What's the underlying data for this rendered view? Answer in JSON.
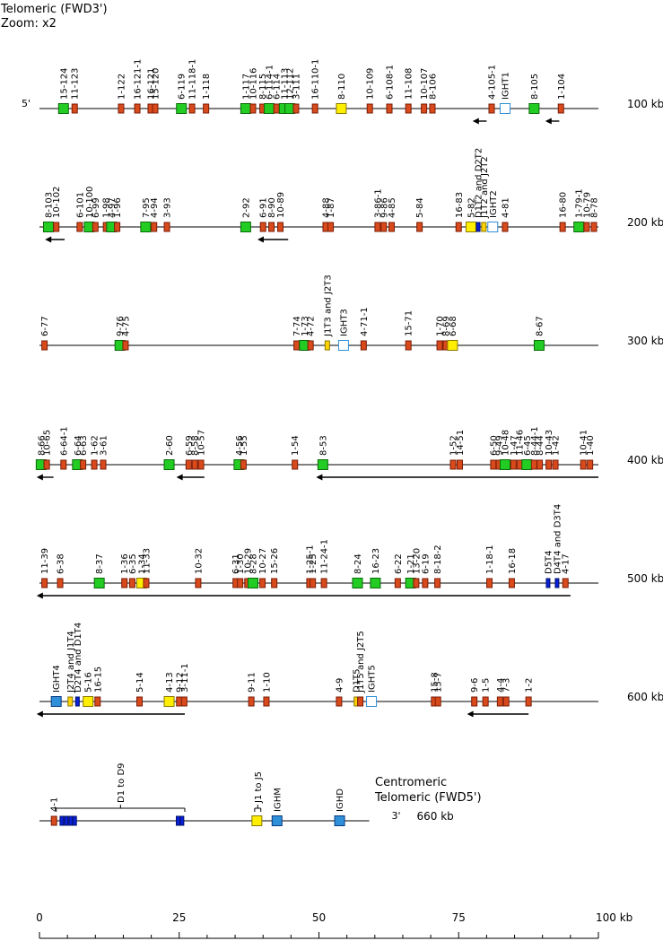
{
  "header": {
    "title": "Telomeric (FWD3')",
    "zoom": "Zoom: x2"
  },
  "legend": {
    "red": "#d84a1b",
    "green": "#22cc22",
    "yellow": "#ffee00",
    "blue": "#0a1fd8",
    "light_blue": "#2f8fd8",
    "hollow_blue": "#2f8fd8",
    "line": "#000000"
  },
  "axis": {
    "ticks": [
      "0",
      "25",
      "50",
      "75",
      "100 kb"
    ],
    "values": [
      0,
      25,
      50,
      75,
      100
    ]
  },
  "rows": [
    {
      "kb": "100 kb",
      "end5": "5'",
      "arrows": [
        {
          "from": 80,
          "to": 77.5
        },
        {
          "from": 93,
          "to": 90.5
        }
      ],
      "genes": [
        {
          "pos": 4.3,
          "t": "g",
          "l": "15-124"
        },
        {
          "pos": 6.3,
          "t": "r",
          "l": "11-123"
        },
        {
          "pos": 14.6,
          "t": "r",
          "l": "1-122"
        },
        {
          "pos": 17.5,
          "t": "r",
          "l": "16-121-1"
        },
        {
          "pos": 19.9,
          "t": "r",
          "l": "16-121"
        },
        {
          "pos": 20.7,
          "t": "r",
          "l": "15-120"
        },
        {
          "pos": 25.4,
          "t": "g",
          "l": "6-119"
        },
        {
          "pos": 27.3,
          "t": "r",
          "l": "11-118-1"
        },
        {
          "pos": 29.8,
          "t": "r",
          "l": "1-118"
        },
        {
          "pos": 36.9,
          "t": "g",
          "l": "1-117"
        },
        {
          "pos": 38.2,
          "t": "r",
          "l": "10-116"
        },
        {
          "pos": 39.9,
          "t": "r",
          "l": "8-115"
        },
        {
          "pos": 41.1,
          "t": "g",
          "l": "6-114-1"
        },
        {
          "pos": 42.4,
          "t": "r",
          "l": "6-114"
        },
        {
          "pos": 43.8,
          "t": "g",
          "l": "11-113"
        },
        {
          "pos": 44.8,
          "t": "g",
          "l": "12-112"
        },
        {
          "pos": 45.9,
          "t": "r",
          "l": "3-111"
        },
        {
          "pos": 49.3,
          "t": "r",
          "l": "16-110-1"
        },
        {
          "pos": 54.0,
          "t": "y",
          "l": "8-110"
        },
        {
          "pos": 59.1,
          "t": "r",
          "l": "10-109"
        },
        {
          "pos": 62.6,
          "t": "r",
          "l": "6-108-1"
        },
        {
          "pos": 66.0,
          "t": "r",
          "l": "11-108"
        },
        {
          "pos": 68.8,
          "t": "r",
          "l": "10-107"
        },
        {
          "pos": 70.3,
          "t": "r",
          "l": "8-106"
        },
        {
          "pos": 80.9,
          "t": "r",
          "l": "4-105-1"
        },
        {
          "pos": 83.3,
          "t": "h",
          "l": "IGHT1"
        },
        {
          "pos": 88.5,
          "t": "g",
          "l": "8-105"
        },
        {
          "pos": 93.3,
          "t": "r",
          "l": "1-104"
        }
      ]
    },
    {
      "kb": "200 kb",
      "end5": "",
      "arrows": [
        {
          "from": 4.5,
          "to": 1.0
        },
        {
          "from": 44.5,
          "to": 39.0
        }
      ],
      "genes": [
        {
          "pos": 1.6,
          "t": "g",
          "l": "8-103"
        },
        {
          "pos": 3.0,
          "t": "r",
          "l": "10-102"
        },
        {
          "pos": 7.2,
          "t": "r",
          "l": "6-101"
        },
        {
          "pos": 8.9,
          "t": "g",
          "l": "10-100"
        },
        {
          "pos": 10.0,
          "t": "r",
          "l": "6-99"
        },
        {
          "pos": 11.9,
          "t": "r",
          "l": "1-98"
        },
        {
          "pos": 12.9,
          "t": "g",
          "l": "4-97"
        },
        {
          "pos": 13.9,
          "t": "r",
          "l": "1-96"
        },
        {
          "pos": 19.0,
          "t": "g",
          "l": "7-95"
        },
        {
          "pos": 20.5,
          "t": "r",
          "l": "4-94"
        },
        {
          "pos": 22.8,
          "t": "r",
          "l": "3-93"
        },
        {
          "pos": 36.9,
          "t": "g",
          "l": "2-92"
        },
        {
          "pos": 40.0,
          "t": "r",
          "l": "6-91"
        },
        {
          "pos": 41.5,
          "t": "r",
          "l": "8-90"
        },
        {
          "pos": 43.1,
          "t": "r",
          "l": "10-89"
        },
        {
          "pos": 51.2,
          "t": "r",
          "l": "4-88"
        },
        {
          "pos": 52.1,
          "t": "r",
          "l": "1-87"
        },
        {
          "pos": 60.5,
          "t": "r",
          "l": "3-86-1"
        },
        {
          "pos": 61.6,
          "t": "r",
          "l": "9-86"
        },
        {
          "pos": 63.0,
          "t": "r",
          "l": "4-85"
        },
        {
          "pos": 68.0,
          "t": "r",
          "l": "5-84"
        },
        {
          "pos": 75.0,
          "t": "r",
          "l": "16-83"
        },
        {
          "pos": 77.2,
          "t": "y",
          "l": "5-82"
        },
        {
          "pos": 78.5,
          "t": "bb",
          "l": "D1T2 and D2T2"
        },
        {
          "pos": 79.5,
          "t": "ys",
          "l": "J1T2 and J2T2"
        },
        {
          "pos": 81.1,
          "t": "h",
          "l": "IGHT2"
        },
        {
          "pos": 83.3,
          "t": "r",
          "l": "4-81"
        },
        {
          "pos": 93.6,
          "t": "r",
          "l": "16-80"
        },
        {
          "pos": 96.5,
          "t": "g",
          "l": "1-79-1"
        },
        {
          "pos": 97.9,
          "t": "r",
          "l": "10-79"
        },
        {
          "pos": 99.2,
          "t": "r",
          "l": "8-78"
        }
      ]
    },
    {
      "kb": "300 kb",
      "end5": "",
      "arrows": [],
      "genes": [
        {
          "pos": 0.9,
          "t": "r",
          "l": "6-77"
        },
        {
          "pos": 14.4,
          "t": "g",
          "l": "9-76"
        },
        {
          "pos": 15.4,
          "t": "r",
          "l": "4-75"
        },
        {
          "pos": 46.0,
          "t": "r",
          "l": "7-74"
        },
        {
          "pos": 47.4,
          "t": "g",
          "l": "1-73"
        },
        {
          "pos": 48.5,
          "t": "r",
          "l": "4-72"
        },
        {
          "pos": 51.5,
          "t": "ys",
          "l": "J1T3 and J2T3"
        },
        {
          "pos": 54.4,
          "t": "h",
          "l": "IGHT3"
        },
        {
          "pos": 58.0,
          "t": "r",
          "l": "4-71-1"
        },
        {
          "pos": 66.0,
          "t": "r",
          "l": "15-71"
        },
        {
          "pos": 71.6,
          "t": "r",
          "l": "1-70"
        },
        {
          "pos": 72.7,
          "t": "r",
          "l": "8-69"
        },
        {
          "pos": 73.9,
          "t": "y",
          "l": "6-68"
        },
        {
          "pos": 89.4,
          "t": "g",
          "l": "8-67"
        }
      ]
    },
    {
      "kb": "400 kb",
      "end5": "",
      "arrows": [
        {
          "from": 2.5,
          "to": -0.5
        },
        {
          "from": 29.5,
          "to": 24.5
        },
        {
          "from": 100,
          "to": 49.5
        }
      ],
      "genes": [
        {
          "pos": 0.3,
          "t": "g",
          "l": "8-66"
        },
        {
          "pos": 1.3,
          "t": "r",
          "l": "10-65"
        },
        {
          "pos": 4.3,
          "t": "r",
          "l": "6-64-1"
        },
        {
          "pos": 6.8,
          "t": "g",
          "l": "6-64"
        },
        {
          "pos": 7.8,
          "t": "r",
          "l": "6-63"
        },
        {
          "pos": 9.8,
          "t": "r",
          "l": "1-62"
        },
        {
          "pos": 11.4,
          "t": "r",
          "l": "3-61"
        },
        {
          "pos": 23.2,
          "t": "g",
          "l": "2-60"
        },
        {
          "pos": 26.7,
          "t": "r",
          "l": "6-59"
        },
        {
          "pos": 27.8,
          "t": "r",
          "l": "8-58"
        },
        {
          "pos": 28.9,
          "t": "r",
          "l": "10-57"
        },
        {
          "pos": 35.7,
          "t": "g",
          "l": "4-56"
        },
        {
          "pos": 36.5,
          "t": "r",
          "l": "1-55"
        },
        {
          "pos": 45.7,
          "t": "r",
          "l": "1-54"
        },
        {
          "pos": 50.7,
          "t": "g",
          "l": "8-53"
        },
        {
          "pos": 74.0,
          "t": "r",
          "l": "1-52"
        },
        {
          "pos": 75.2,
          "t": "r",
          "l": "14-51"
        },
        {
          "pos": 81.2,
          "t": "r",
          "l": "6-50"
        },
        {
          "pos": 82.2,
          "t": "r",
          "l": "9-49"
        },
        {
          "pos": 83.3,
          "t": "g",
          "l": "10-48"
        },
        {
          "pos": 84.8,
          "t": "r",
          "l": "1-47"
        },
        {
          "pos": 85.9,
          "t": "r",
          "l": "11-46"
        },
        {
          "pos": 87.2,
          "t": "g",
          "l": "6-45"
        },
        {
          "pos": 88.5,
          "t": "r",
          "l": "8-44-1"
        },
        {
          "pos": 89.5,
          "t": "r",
          "l": "8-44"
        },
        {
          "pos": 91.1,
          "t": "r",
          "l": "10-43"
        },
        {
          "pos": 92.3,
          "t": "r",
          "l": "1-42"
        },
        {
          "pos": 97.3,
          "t": "r",
          "l": "10-41"
        },
        {
          "pos": 98.5,
          "t": "r",
          "l": "1-40"
        }
      ]
    },
    {
      "kb": "500 kb",
      "end5": "",
      "arrows": [
        {
          "from": 95,
          "to": -0.5
        }
      ],
      "genes": [
        {
          "pos": 0.9,
          "t": "r",
          "l": "11-39"
        },
        {
          "pos": 3.7,
          "t": "r",
          "l": "6-38"
        },
        {
          "pos": 10.7,
          "t": "g",
          "l": "8-37"
        },
        {
          "pos": 15.2,
          "t": "r",
          "l": "1-36"
        },
        {
          "pos": 16.6,
          "t": "r",
          "l": "6-35"
        },
        {
          "pos": 18.3,
          "t": "y",
          "l": "1-34"
        },
        {
          "pos": 19.1,
          "t": "r",
          "l": "11-33"
        },
        {
          "pos": 28.4,
          "t": "r",
          "l": "10-32"
        },
        {
          "pos": 35.1,
          "t": "r",
          "l": "6-31"
        },
        {
          "pos": 35.9,
          "t": "r",
          "l": "1-30"
        },
        {
          "pos": 37.2,
          "t": "r",
          "l": "10-29"
        },
        {
          "pos": 38.2,
          "t": "g",
          "l": "8-28"
        },
        {
          "pos": 39.9,
          "t": "r",
          "l": "10-27"
        },
        {
          "pos": 42.0,
          "t": "r",
          "l": "15-26"
        },
        {
          "pos": 48.3,
          "t": "r",
          "l": "1-25-1"
        },
        {
          "pos": 48.9,
          "t": "r",
          "l": "1-25"
        },
        {
          "pos": 50.9,
          "t": "r",
          "l": "11-24-1"
        },
        {
          "pos": 56.9,
          "t": "g",
          "l": "8-24"
        },
        {
          "pos": 60.1,
          "t": "g",
          "l": "16-23"
        },
        {
          "pos": 64.1,
          "t": "r",
          "l": "6-22"
        },
        {
          "pos": 66.4,
          "t": "g",
          "l": "1-21"
        },
        {
          "pos": 67.4,
          "t": "r",
          "l": "13-20"
        },
        {
          "pos": 69.0,
          "t": "r",
          "l": "6-19"
        },
        {
          "pos": 71.2,
          "t": "r",
          "l": "8-18-2"
        },
        {
          "pos": 80.5,
          "t": "r",
          "l": "1-18-1"
        },
        {
          "pos": 84.5,
          "t": "r",
          "l": "16-18"
        },
        {
          "pos": 91.0,
          "t": "bb",
          "l": "D5T4"
        },
        {
          "pos": 92.6,
          "t": "bb",
          "l": "D4T4 and D3T4"
        },
        {
          "pos": 94.1,
          "t": "r",
          "l": "4-17"
        }
      ]
    },
    {
      "kb": "600 kb",
      "end5": "",
      "arrows": [
        {
          "from": 26,
          "to": -0.5
        },
        {
          "from": 87.5,
          "to": 76.5
        }
      ],
      "genes": [
        {
          "pos": 3.0,
          "t": "lb",
          "l": "IGHT4"
        },
        {
          "pos": 5.5,
          "t": "ys",
          "l": "J2T4 and J1T4"
        },
        {
          "pos": 6.8,
          "t": "bb",
          "l": "D2T4 and D1T4"
        },
        {
          "pos": 8.7,
          "t": "y",
          "l": "5-16"
        },
        {
          "pos": 10.4,
          "t": "r",
          "l": "16-15"
        },
        {
          "pos": 17.9,
          "t": "r",
          "l": "5-14"
        },
        {
          "pos": 23.2,
          "t": "y",
          "l": "4-13"
        },
        {
          "pos": 25.0,
          "t": "r",
          "l": "9-12"
        },
        {
          "pos": 25.9,
          "t": "r",
          "l": "3-11-1"
        },
        {
          "pos": 37.9,
          "t": "r",
          "l": "9-11"
        },
        {
          "pos": 40.6,
          "t": "r",
          "l": "1-10"
        },
        {
          "pos": 53.6,
          "t": "r",
          "l": "4-9"
        },
        {
          "pos": 56.7,
          "t": "ys",
          "l": "D1T5"
        },
        {
          "pos": 57.4,
          "t": "r",
          "l": "J1T5 and J2T5"
        },
        {
          "pos": 59.4,
          "t": "h",
          "l": "IGHT5"
        },
        {
          "pos": 70.6,
          "t": "r",
          "l": "15-8"
        },
        {
          "pos": 71.3,
          "t": "r",
          "l": "15-7"
        },
        {
          "pos": 77.8,
          "t": "r",
          "l": "9-6"
        },
        {
          "pos": 79.8,
          "t": "r",
          "l": "1-5"
        },
        {
          "pos": 82.4,
          "t": "r",
          "l": "4-4"
        },
        {
          "pos": 83.5,
          "t": "r",
          "l": "7-3"
        },
        {
          "pos": 87.5,
          "t": "r",
          "l": "1-2"
        }
      ]
    },
    {
      "kb": "660 kb",
      "end5": "3'",
      "arrows": [],
      "genes": [
        {
          "pos": 2.6,
          "t": "r",
          "l": "4-1"
        },
        {
          "pos": 4.0,
          "t": "bb",
          "l": ""
        },
        {
          "pos": 4.8,
          "t": "bb",
          "l": ""
        },
        {
          "pos": 5.6,
          "t": "bb",
          "l": ""
        },
        {
          "pos": 6.3,
          "t": "bb",
          "l": ""
        },
        {
          "pos": 24.8,
          "t": "bb",
          "l": ""
        },
        {
          "pos": 25.5,
          "t": "bb",
          "l": ""
        },
        {
          "pos": 38.9,
          "t": "y",
          "l": ""
        },
        {
          "pos": 42.5,
          "t": "lb",
          "l": "IGHM"
        },
        {
          "pos": 53.7,
          "t": "lb",
          "l": "IGHD"
        }
      ],
      "brackets": [
        {
          "from": 3.0,
          "to": 26.0,
          "label": "D1 to D9"
        },
        {
          "from": 38.5,
          "to": 39.6,
          "label": "J1 to J5"
        }
      ],
      "notes": {
        "centromeric": "Centromeric",
        "telomeric": "Telomeric (FWD5')"
      }
    }
  ]
}
